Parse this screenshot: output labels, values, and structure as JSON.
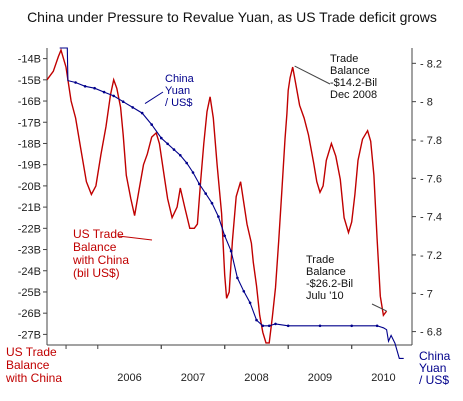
{
  "chart_data": {
    "type": "line",
    "title": "China under Pressure to Revalue Yuan, as US Trade deficit grows",
    "x_ticks": [
      "2006",
      "2007",
      "2008",
      "2009",
      "2010"
    ],
    "y_left_ticks": [
      "-14B",
      "-15B",
      "-16B",
      "-17B",
      "-18B",
      "-19B",
      "-20B",
      "-21B",
      "-22B",
      "-23B",
      "-24B",
      "-25B",
      "-26B",
      "-27B"
    ],
    "y_right_ticks": [
      "8.2",
      "8",
      "7.8",
      "7.6",
      "7.4",
      "7.2",
      "7",
      "6.8"
    ],
    "y_left_range": [
      -27.5,
      -13.5
    ],
    "y_right_range": [
      6.73,
      8.28
    ],
    "x_range": [
      2005.2,
      2010.95
    ],
    "grid": false,
    "series": [
      {
        "name": "US Trade Balance with China (bil US$)",
        "axis": "left",
        "color": "#c00000",
        "points": [
          [
            2005.2,
            -15.0
          ],
          [
            2005.3,
            -14.6
          ],
          [
            2005.38,
            -13.9
          ],
          [
            2005.42,
            -13.6
          ],
          [
            2005.5,
            -14.4
          ],
          [
            2005.58,
            -16.0
          ],
          [
            2005.65,
            -16.8
          ],
          [
            2005.73,
            -18.2
          ],
          [
            2005.82,
            -19.8
          ],
          [
            2005.9,
            -20.4
          ],
          [
            2005.97,
            -20.0
          ],
          [
            2006.05,
            -18.5
          ],
          [
            2006.13,
            -17.2
          ],
          [
            2006.2,
            -15.7
          ],
          [
            2006.25,
            -15.0
          ],
          [
            2006.3,
            -15.4
          ],
          [
            2006.36,
            -16.3
          ],
          [
            2006.4,
            -17.6
          ],
          [
            2006.45,
            -19.5
          ],
          [
            2006.52,
            -20.6
          ],
          [
            2006.58,
            -21.4
          ],
          [
            2006.65,
            -20.2
          ],
          [
            2006.72,
            -19.0
          ],
          [
            2006.78,
            -18.5
          ],
          [
            2006.85,
            -17.7
          ],
          [
            2006.92,
            -17.5
          ],
          [
            2006.97,
            -18.0
          ],
          [
            2007.05,
            -19.6
          ],
          [
            2007.1,
            -20.6
          ],
          [
            2007.17,
            -21.5
          ],
          [
            2007.25,
            -21.0
          ],
          [
            2007.3,
            -20.1
          ],
          [
            2007.37,
            -21.0
          ],
          [
            2007.45,
            -22.0
          ],
          [
            2007.52,
            -22.0
          ],
          [
            2007.57,
            -21.8
          ],
          [
            2007.62,
            -19.8
          ],
          [
            2007.67,
            -18.0
          ],
          [
            2007.72,
            -16.5
          ],
          [
            2007.77,
            -15.8
          ],
          [
            2007.82,
            -16.8
          ],
          [
            2007.88,
            -19.0
          ],
          [
            2007.95,
            -21.3
          ],
          [
            2008.0,
            -24.2
          ],
          [
            2008.03,
            -25.3
          ],
          [
            2008.07,
            -25.0
          ],
          [
            2008.12,
            -22.6
          ],
          [
            2008.18,
            -20.5
          ],
          [
            2008.25,
            -19.8
          ],
          [
            2008.3,
            -20.8
          ],
          [
            2008.35,
            -21.8
          ],
          [
            2008.42,
            -22.7
          ],
          [
            2008.45,
            -23.6
          ],
          [
            2008.5,
            -24.7
          ],
          [
            2008.55,
            -26.1
          ],
          [
            2008.6,
            -26.9
          ],
          [
            2008.65,
            -27.4
          ],
          [
            2008.7,
            -27.4
          ],
          [
            2008.75,
            -26.2
          ],
          [
            2008.8,
            -24.8
          ],
          [
            2008.85,
            -22.6
          ],
          [
            2008.9,
            -20.2
          ],
          [
            2008.95,
            -17.8
          ],
          [
            2008.98,
            -16.6
          ],
          [
            2009.0,
            -15.5
          ],
          [
            2009.03,
            -14.9
          ],
          [
            2009.07,
            -14.4
          ],
          [
            2009.12,
            -15.2
          ],
          [
            2009.18,
            -16.2
          ],
          [
            2009.25,
            -16.8
          ],
          [
            2009.32,
            -17.6
          ],
          [
            2009.4,
            -18.9
          ],
          [
            2009.45,
            -19.8
          ],
          [
            2009.5,
            -20.3
          ],
          [
            2009.55,
            -20.0
          ],
          [
            2009.6,
            -18.8
          ],
          [
            2009.68,
            -18.0
          ],
          [
            2009.75,
            -18.6
          ],
          [
            2009.82,
            -19.7
          ],
          [
            2009.88,
            -21.5
          ],
          [
            2009.95,
            -22.2
          ],
          [
            2010.0,
            -21.7
          ],
          [
            2010.05,
            -20.4
          ],
          [
            2010.1,
            -18.8
          ],
          [
            2010.17,
            -17.8
          ],
          [
            2010.25,
            -17.4
          ],
          [
            2010.3,
            -17.9
          ],
          [
            2010.35,
            -19.5
          ],
          [
            2010.4,
            -22.5
          ],
          [
            2010.45,
            -25.2
          ],
          [
            2010.5,
            -26.1
          ],
          [
            2010.55,
            -25.9
          ]
        ]
      },
      {
        "name": "China Yuan / US$",
        "axis": "right",
        "color": "#00008b",
        "points": [
          [
            2005.4,
            8.28
          ],
          [
            2005.52,
            8.28
          ],
          [
            2005.53,
            8.11
          ],
          [
            2005.65,
            8.1
          ],
          [
            2005.8,
            8.08
          ],
          [
            2005.95,
            8.07
          ],
          [
            2006.1,
            8.05
          ],
          [
            2006.25,
            8.03
          ],
          [
            2006.4,
            8.0
          ],
          [
            2006.55,
            7.97
          ],
          [
            2006.7,
            7.94
          ],
          [
            2006.85,
            7.88
          ],
          [
            2007.0,
            7.81
          ],
          [
            2007.1,
            7.78
          ],
          [
            2007.2,
            7.75
          ],
          [
            2007.3,
            7.72
          ],
          [
            2007.4,
            7.68
          ],
          [
            2007.5,
            7.63
          ],
          [
            2007.6,
            7.57
          ],
          [
            2007.7,
            7.52
          ],
          [
            2007.8,
            7.47
          ],
          [
            2007.9,
            7.4
          ],
          [
            2008.0,
            7.3
          ],
          [
            2008.1,
            7.22
          ],
          [
            2008.2,
            7.08
          ],
          [
            2008.3,
            7.01
          ],
          [
            2008.4,
            6.95
          ],
          [
            2008.5,
            6.86
          ],
          [
            2008.6,
            6.83
          ],
          [
            2008.7,
            6.83
          ],
          [
            2008.8,
            6.84
          ],
          [
            2009.0,
            6.83
          ],
          [
            2009.5,
            6.83
          ],
          [
            2010.0,
            6.83
          ],
          [
            2010.4,
            6.83
          ],
          [
            2010.5,
            6.82
          ],
          [
            2010.55,
            6.81
          ],
          [
            2010.58,
            6.75
          ],
          [
            2010.62,
            6.78
          ],
          [
            2010.68,
            6.74
          ],
          [
            2010.75,
            6.66
          ],
          [
            2010.82,
            6.66
          ]
        ]
      }
    ],
    "annotations": {
      "yuan_series_label": [
        "China",
        "Yuan",
        "/ US$"
      ],
      "trade_peak": [
        "Trade",
        "Balance",
        "-$14.2-Bil",
        "Dec 2008"
      ],
      "trade_series_label": [
        "US Trade",
        "Balance",
        "with China",
        "(bil US$)"
      ],
      "trade_latest": [
        "Trade",
        "Balance",
        "-$26.2-Bil",
        "Julu '10"
      ],
      "left_axis_label": [
        "US Trade",
        "Balance",
        "with China"
      ],
      "right_axis_label": [
        "China",
        "Yuan",
        "/ US$"
      ]
    }
  }
}
